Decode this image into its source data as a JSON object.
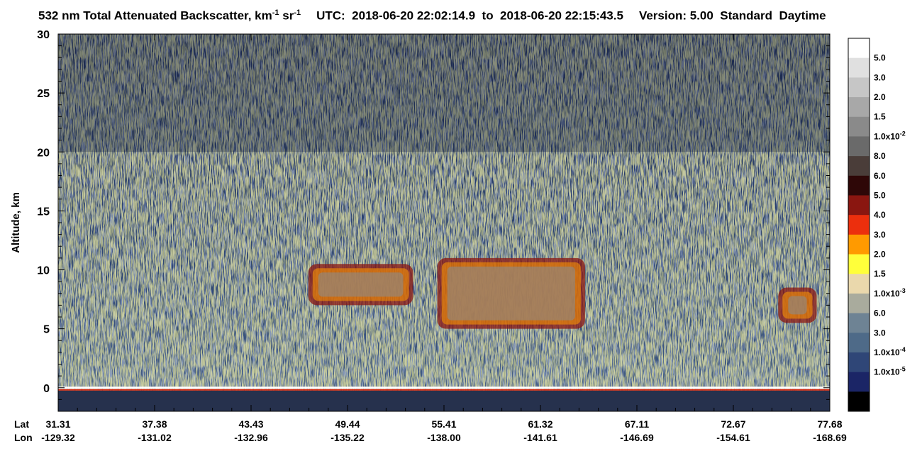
{
  "title": {
    "prefix": "532 nm Total Attenuated Backscatter, km",
    "unit_exp_1": "-1",
    "unit_mid": " sr",
    "unit_exp_2": "-1",
    "utc_label": "UTC:",
    "utc_start": "2018-06-20 22:02:14.9",
    "to_word": "to",
    "utc_end": "2018-06-20 22:15:43.5",
    "version": "Version: 5.00",
    "quality": "Standard",
    "daynight": "Daytime"
  },
  "chart_data": {
    "type": "heatmap",
    "ylabel": "Altitude, km",
    "ylim": [
      -2,
      30
    ],
    "yticks": [
      0,
      5,
      10,
      15,
      20,
      25,
      30
    ],
    "x_row_labels": [
      "Lat",
      "Lon"
    ],
    "x_ticks": [
      {
        "lat": "31.31",
        "lon": "-129.32"
      },
      {
        "lat": "37.38",
        "lon": "-131.02"
      },
      {
        "lat": "43.43",
        "lon": "-132.96"
      },
      {
        "lat": "49.44",
        "lon": "-135.22"
      },
      {
        "lat": "55.41",
        "lon": "-138.00"
      },
      {
        "lat": "61.32",
        "lon": "-141.61"
      },
      {
        "lat": "67.11",
        "lon": "-146.69"
      },
      {
        "lat": "72.67",
        "lon": "-154.61"
      },
      {
        "lat": "77.68",
        "lon": "-168.69"
      }
    ],
    "colorbar": {
      "levels": [
        {
          "label": "5.0",
          "exp": "",
          "color": "#ffffff"
        },
        {
          "label": "3.0",
          "exp": "",
          "color": "#e0e0e0"
        },
        {
          "label": "2.0",
          "exp": "",
          "color": "#c6c6c6"
        },
        {
          "label": "1.5",
          "exp": "",
          "color": "#a8a8a8"
        },
        {
          "label": "1.0x10",
          "exp": "-2",
          "color": "#8a8a8a"
        },
        {
          "label": "8.0",
          "exp": "",
          "color": "#6a6a6a"
        },
        {
          "label": "6.0",
          "exp": "",
          "color": "#4a3d39"
        },
        {
          "label": "5.0",
          "exp": "",
          "color": "#2e0707"
        },
        {
          "label": "4.0",
          "exp": "",
          "color": "#8a1610"
        },
        {
          "label": "3.0",
          "exp": "",
          "color": "#ec2f0d"
        },
        {
          "label": "2.0",
          "exp": "",
          "color": "#ff9a00"
        },
        {
          "label": "1.5",
          "exp": "",
          "color": "#ffff3a"
        },
        {
          "label": "1.0x10",
          "exp": "-3",
          "color": "#ead8ac"
        },
        {
          "label": "6.0",
          "exp": "",
          "color": "#a9ab9d"
        },
        {
          "label": "3.0",
          "exp": "",
          "color": "#6e8394"
        },
        {
          "label": "1.0x10",
          "exp": "-4",
          "color": "#4e6a88"
        },
        {
          "label": "1.0x10",
          "exp": "-5",
          "color": "#2f4677"
        },
        {
          "label": "",
          "exp": "",
          "color": "#1b2566"
        },
        {
          "label": "",
          "exp": "",
          "color": "#000000"
        }
      ]
    },
    "features": {
      "surface_altitude_km": 0,
      "noise_layer_top_km": 20,
      "cloud_layers": [
        {
          "lat_from": "47.0",
          "lat_to": "53.5",
          "base_km": 7.0,
          "top_km": 10.5
        },
        {
          "lat_from": "55.0",
          "lat_to": "64.0",
          "base_km": 5.0,
          "top_km": 11.0
        },
        {
          "lat_from": "75.0",
          "lat_to": "77.0",
          "base_km": 5.5,
          "top_km": 8.5
        }
      ]
    }
  }
}
